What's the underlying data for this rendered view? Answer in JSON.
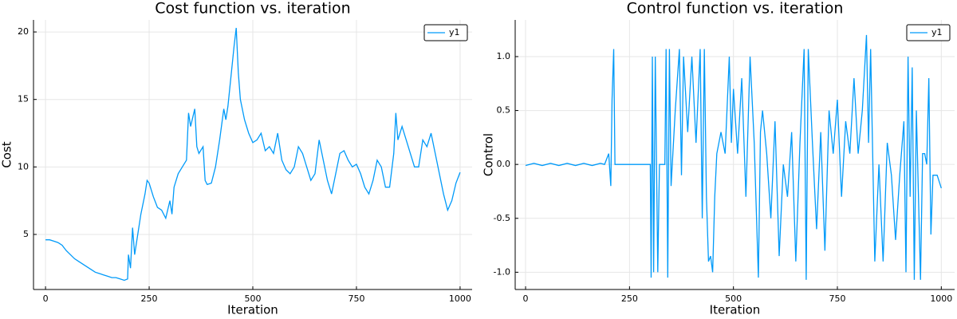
{
  "chart_data": [
    {
      "type": "line",
      "title": "Cost function vs. iteration",
      "xlabel": "Iteration",
      "ylabel": "Cost",
      "x": [
        0,
        10,
        20,
        30,
        40,
        50,
        60,
        70,
        80,
        90,
        100,
        110,
        120,
        130,
        140,
        150,
        160,
        170,
        180,
        190,
        198,
        200,
        205,
        210,
        215,
        220,
        230,
        240,
        245,
        250,
        260,
        270,
        280,
        290,
        300,
        305,
        310,
        320,
        330,
        340,
        345,
        350,
        360,
        365,
        370,
        380,
        385,
        390,
        400,
        410,
        420,
        430,
        435,
        440,
        445,
        450,
        455,
        460,
        465,
        470,
        480,
        490,
        500,
        510,
        520,
        530,
        540,
        550,
        560,
        570,
        580,
        590,
        600,
        610,
        620,
        630,
        640,
        650,
        660,
        670,
        680,
        690,
        700,
        710,
        720,
        730,
        740,
        750,
        760,
        770,
        780,
        790,
        800,
        810,
        820,
        830,
        840,
        845,
        850,
        860,
        870,
        880,
        890,
        900,
        910,
        920,
        930,
        940,
        950,
        960,
        970,
        980,
        990,
        1000
      ],
      "series": [
        {
          "name": "y1",
          "color": "#009af9",
          "values": [
            4.6,
            4.6,
            4.5,
            4.4,
            4.2,
            3.8,
            3.5,
            3.2,
            3.0,
            2.8,
            2.6,
            2.4,
            2.2,
            2.1,
            2.0,
            1.9,
            1.8,
            1.8,
            1.7,
            1.6,
            1.7,
            3.5,
            2.5,
            5.5,
            3.5,
            4.5,
            6.5,
            8.0,
            9.0,
            8.8,
            7.8,
            7.0,
            6.8,
            6.2,
            7.5,
            6.5,
            8.5,
            9.5,
            10.0,
            10.5,
            14.0,
            13.0,
            14.3,
            11.5,
            11.0,
            11.5,
            9.0,
            8.7,
            8.8,
            10.0,
            12.0,
            14.3,
            13.5,
            14.5,
            16.0,
            17.5,
            19.0,
            20.3,
            17.0,
            15.0,
            13.5,
            12.5,
            11.8,
            12.0,
            12.5,
            11.2,
            11.5,
            11.0,
            12.5,
            10.5,
            9.8,
            9.5,
            10.0,
            11.5,
            11.0,
            10.0,
            9.0,
            9.5,
            12.0,
            10.5,
            9.0,
            8.0,
            9.5,
            11.0,
            11.2,
            10.5,
            10.0,
            10.2,
            9.5,
            8.5,
            8.0,
            9.0,
            10.5,
            10.0,
            8.5,
            8.5,
            11.0,
            14.0,
            12.0,
            13.0,
            12.0,
            11.0,
            10.0,
            10.0,
            12.0,
            11.5,
            12.5,
            11.0,
            9.5,
            8.0,
            6.8,
            7.5,
            8.8,
            9.6
          ]
        }
      ],
      "xlim": [
        -29,
        1029
      ],
      "ylim": [
        0.92,
        20.89
      ],
      "xticks": [
        0,
        250,
        500,
        750,
        1000
      ],
      "yticks": [
        5,
        10,
        15,
        20
      ],
      "grid": true,
      "legend": "top-right"
    },
    {
      "type": "line",
      "title": "Control function vs. iteration",
      "xlabel": "Iteration",
      "ylabel": "Control",
      "x": [
        0,
        20,
        40,
        60,
        80,
        100,
        120,
        140,
        160,
        180,
        190,
        200,
        205,
        208,
        212,
        215,
        300,
        302,
        305,
        308,
        312,
        318,
        322,
        335,
        338,
        342,
        346,
        350,
        360,
        370,
        375,
        380,
        390,
        400,
        410,
        420,
        425,
        430,
        435,
        440,
        445,
        450,
        455,
        460,
        470,
        480,
        490,
        495,
        500,
        510,
        520,
        530,
        540,
        550,
        560,
        565,
        570,
        580,
        590,
        600,
        610,
        620,
        630,
        640,
        650,
        660,
        670,
        675,
        680,
        690,
        700,
        710,
        720,
        730,
        740,
        750,
        760,
        770,
        780,
        790,
        800,
        810,
        820,
        825,
        830,
        840,
        850,
        860,
        870,
        880,
        890,
        900,
        910,
        915,
        920,
        925,
        930,
        935,
        940,
        950,
        955,
        960,
        965,
        970,
        975,
        980,
        990,
        1000
      ],
      "series": [
        {
          "name": "y1",
          "color": "#009af9",
          "values": [
            -0.01,
            0.01,
            -0.01,
            0.01,
            -0.01,
            0.01,
            -0.01,
            0.01,
            -0.01,
            0.01,
            0.0,
            0.1,
            -0.2,
            0.6,
            1.07,
            0.0,
            0.0,
            -1.05,
            1.0,
            -1.0,
            1.0,
            -1.0,
            0.0,
            0.0,
            1.07,
            -1.05,
            1.07,
            -0.2,
            0.5,
            1.07,
            -0.1,
            1.0,
            0.3,
            1.0,
            0.2,
            1.07,
            -0.5,
            1.07,
            -0.3,
            -0.9,
            -0.85,
            -1.0,
            -0.3,
            0.1,
            0.3,
            0.1,
            1.0,
            0.2,
            0.7,
            0.1,
            0.8,
            -0.3,
            1.0,
            0.2,
            -1.05,
            0.3,
            0.5,
            0.1,
            -0.5,
            0.4,
            -0.85,
            0.0,
            -0.3,
            0.3,
            -0.9,
            0.2,
            1.07,
            -1.07,
            1.07,
            0.2,
            -0.6,
            0.3,
            -0.8,
            0.5,
            0.1,
            0.6,
            -0.3,
            0.4,
            0.1,
            0.8,
            0.1,
            0.5,
            1.2,
            0.2,
            1.07,
            -0.9,
            0.0,
            -0.9,
            0.2,
            -0.1,
            -0.7,
            -0.1,
            0.4,
            -1.0,
            1.0,
            -0.3,
            0.9,
            -1.07,
            0.5,
            -1.07,
            0.1,
            0.1,
            0.0,
            0.8,
            -0.65,
            -0.1,
            -0.1,
            -0.22
          ]
        }
      ],
      "xlim": [
        -25,
        1032
      ],
      "ylim": [
        -1.16,
        1.34
      ],
      "xticks": [
        0,
        250,
        500,
        750,
        1000
      ],
      "yticks": [
        {
          "value": -1,
          "label": "-1.0"
        },
        -0.5,
        {
          "value": 0,
          "label": "0.0"
        },
        0.5,
        {
          "value": 1,
          "label": "1.0"
        }
      ],
      "grid": true,
      "legend": "top-right"
    }
  ]
}
